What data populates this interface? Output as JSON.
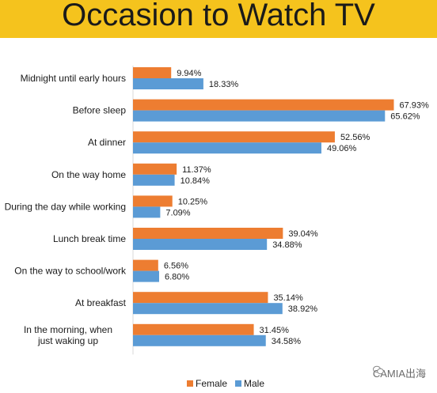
{
  "title": "Occasion to Watch TV",
  "watermark": "CAMIA出海",
  "colors": {
    "banner": "#f5c31d",
    "female": "#ed7d31",
    "male": "#5b9bd5",
    "axis": "#d9d9d9"
  },
  "chart_data": {
    "type": "bar",
    "orientation": "horizontal",
    "xlim": [
      0,
      70
    ],
    "categories": [
      "Midnight until early hours",
      "Before sleep",
      "At dinner",
      "On the way home",
      "During the day while working",
      "Lunch break time",
      "On the way to school/work",
      "At breakfast",
      "In the morning, when just waking up"
    ],
    "series": [
      {
        "name": "Female",
        "values": [
          9.94,
          67.93,
          52.56,
          11.37,
          10.25,
          39.04,
          6.56,
          35.14,
          31.45
        ],
        "labels": [
          "9.94%",
          "67.93%",
          "52.56%",
          "11.37%",
          "10.25%",
          "39.04%",
          "6.56%",
          "35.14%",
          "31.45%"
        ]
      },
      {
        "name": "Male",
        "values": [
          18.33,
          65.62,
          49.06,
          10.84,
          7.09,
          34.88,
          6.8,
          38.92,
          34.58
        ],
        "labels": [
          "18.33%",
          "65.62%",
          "49.06%",
          "10.84%",
          "7.09%",
          "34.88%",
          "6.80%",
          "38.92%",
          "34.58%"
        ]
      }
    ],
    "legend": "bottom",
    "grid": false
  }
}
